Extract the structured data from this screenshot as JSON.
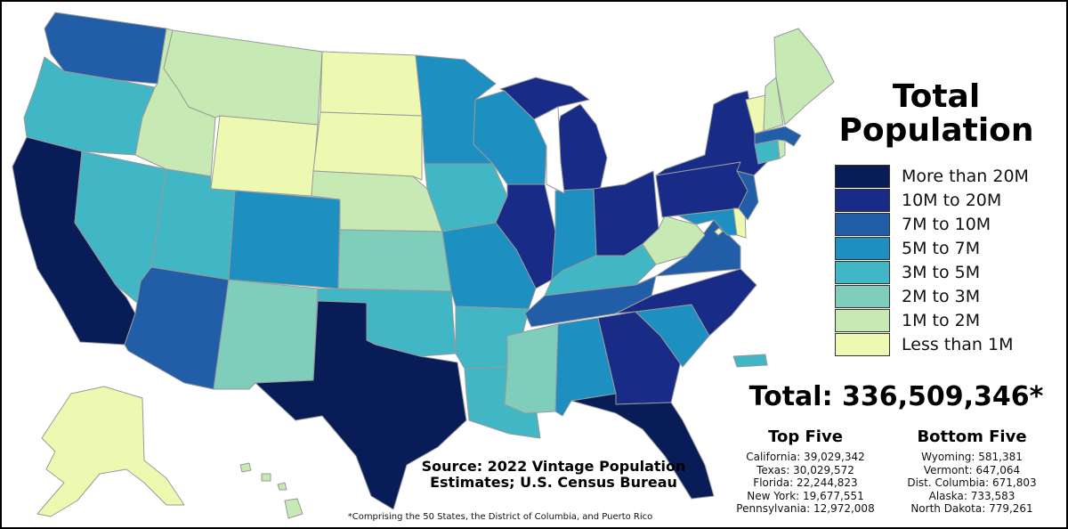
{
  "title": "Total Population",
  "legend": [
    {
      "label": "More than 20M",
      "color": "#081d58"
    },
    {
      "label": "10M to 20M",
      "color": "#172b87"
    },
    {
      "label": "7M to 10M",
      "color": "#225ea8"
    },
    {
      "label": "5M to 7M",
      "color": "#1d8fc0"
    },
    {
      "label": "3M to 5M",
      "color": "#41b6c4"
    },
    {
      "label": "2M to 3M",
      "color": "#7fcdbb"
    },
    {
      "label": "1M to 2M",
      "color": "#c7e9b4"
    },
    {
      "label": "Less than 1M",
      "color": "#edf8b1"
    }
  ],
  "total": "Total: 336,509,346*",
  "top_five": {
    "heading": "Top Five",
    "items": [
      "California: 39,029,342",
      "Texas: 30,029,572",
      "Florida: 22,244,823",
      "New York: 19,677,551",
      "Pennsylvania: 12,972,008"
    ]
  },
  "bottom_five": {
    "heading": "Bottom Five",
    "items": [
      "Wyoming: 581,381",
      "Vermont: 647,064",
      "Dist. Columbia: 671,803",
      "Alaska: 733,583",
      "North Dakota: 779,261"
    ]
  },
  "source": "Source: 2022 Vintage Population Estimates; U.S. Census Bureau",
  "footnote": "*Comprising the 50 States, the District of Columbia, and Puerto Rico",
  "map_regions": [
    {
      "name": "washington",
      "tier": 2
    },
    {
      "name": "oregon",
      "tier": 4
    },
    {
      "name": "california",
      "tier": 0
    },
    {
      "name": "nevada",
      "tier": 4
    },
    {
      "name": "idaho",
      "tier": 6
    },
    {
      "name": "montana",
      "tier": 6
    },
    {
      "name": "wyoming",
      "tier": 7
    },
    {
      "name": "utah",
      "tier": 4
    },
    {
      "name": "arizona",
      "tier": 2
    },
    {
      "name": "colorado",
      "tier": 3
    },
    {
      "name": "new-mexico",
      "tier": 5
    },
    {
      "name": "north-dakota",
      "tier": 7
    },
    {
      "name": "south-dakota",
      "tier": 7
    },
    {
      "name": "nebraska",
      "tier": 6
    },
    {
      "name": "kansas",
      "tier": 5
    },
    {
      "name": "oklahoma",
      "tier": 4
    },
    {
      "name": "texas",
      "tier": 0
    },
    {
      "name": "minnesota",
      "tier": 3
    },
    {
      "name": "iowa",
      "tier": 4
    },
    {
      "name": "missouri",
      "tier": 3
    },
    {
      "name": "arkansas",
      "tier": 4
    },
    {
      "name": "louisiana",
      "tier": 4
    },
    {
      "name": "wisconsin",
      "tier": 3
    },
    {
      "name": "illinois",
      "tier": 1
    },
    {
      "name": "michigan-lower",
      "tier": 1
    },
    {
      "name": "michigan-upper",
      "tier": 1
    },
    {
      "name": "indiana",
      "tier": 3
    },
    {
      "name": "ohio",
      "tier": 1
    },
    {
      "name": "kentucky",
      "tier": 4
    },
    {
      "name": "tennessee",
      "tier": 2
    },
    {
      "name": "mississippi",
      "tier": 5
    },
    {
      "name": "alabama",
      "tier": 3
    },
    {
      "name": "georgia",
      "tier": 1
    },
    {
      "name": "florida",
      "tier": 0
    },
    {
      "name": "south-carolina",
      "tier": 3
    },
    {
      "name": "north-carolina",
      "tier": 1
    },
    {
      "name": "virginia",
      "tier": 2
    },
    {
      "name": "west-virginia",
      "tier": 6
    },
    {
      "name": "maryland",
      "tier": 3
    },
    {
      "name": "delaware",
      "tier": 7
    },
    {
      "name": "dist-columbia",
      "tier": 7
    },
    {
      "name": "pennsylvania",
      "tier": 1
    },
    {
      "name": "new-jersey",
      "tier": 2
    },
    {
      "name": "new-york",
      "tier": 1
    },
    {
      "name": "connecticut",
      "tier": 4
    },
    {
      "name": "rhode-island",
      "tier": 6
    },
    {
      "name": "massachusetts",
      "tier": 2
    },
    {
      "name": "vermont",
      "tier": 7
    },
    {
      "name": "new-hampshire",
      "tier": 6
    },
    {
      "name": "maine",
      "tier": 6
    },
    {
      "name": "alaska",
      "tier": 7
    },
    {
      "name": "hawaii",
      "tier": 6
    },
    {
      "name": "puerto-rico",
      "tier": 4
    }
  ]
}
